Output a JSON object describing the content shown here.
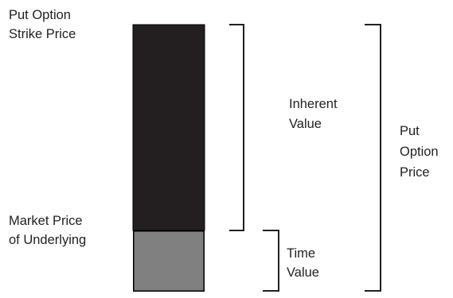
{
  "labels": {
    "strike_line1": "Put Option",
    "strike_line2": "Strike Price",
    "market_line1": "Market Price",
    "market_line2": "of Underlying",
    "inherent_line1": "Inherent",
    "inherent_line2": "Value",
    "time_line1": "Time",
    "time_line2": "Value",
    "price_line1": "Put",
    "price_line2": "Option",
    "price_line3": "Price"
  },
  "colors": {
    "inherent_value_block": "#231f20",
    "time_value_block": "#808080",
    "block_border": "#000000",
    "bracket_stroke": "#231f20",
    "text": "#231f20"
  }
}
